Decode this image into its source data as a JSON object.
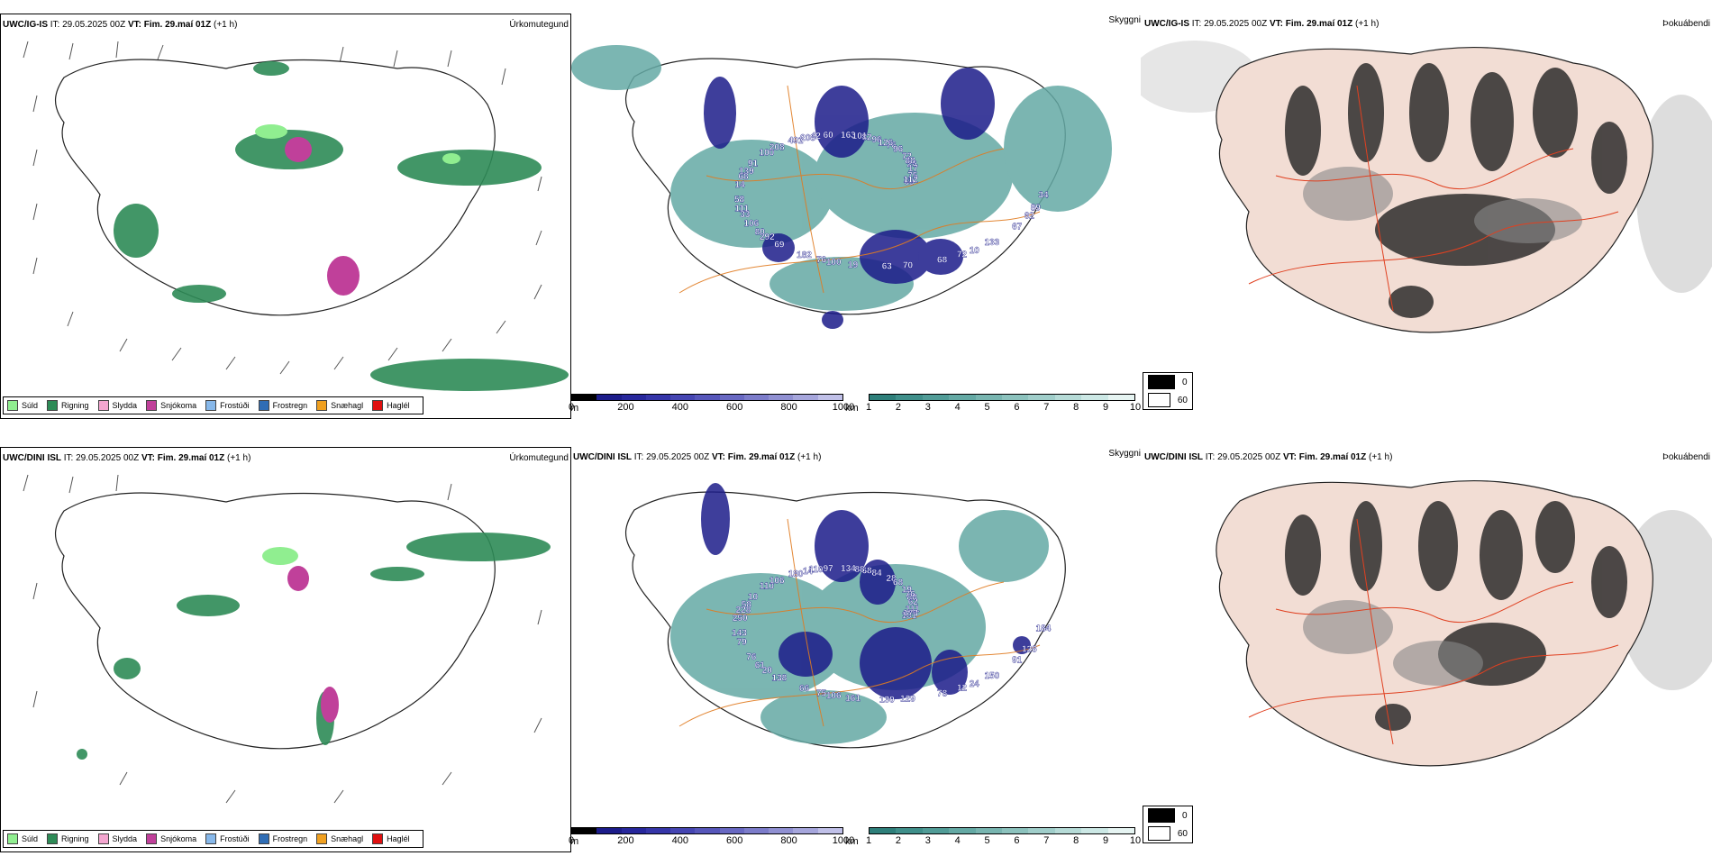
{
  "rows": [
    {
      "model": "UWC/IG-IS",
      "it_label": "IT:",
      "it_value": "29.05.2025 00Z",
      "vt_label": "VT:",
      "vt_value": "Fim. 29.maí 01Z",
      "lead": "(+1 h)"
    },
    {
      "model": "UWC/DINI ISL",
      "it_label": "IT:",
      "it_value": "29.05.2025 00Z",
      "vt_label": "VT:",
      "vt_value": "Fim. 29.maí 01Z",
      "lead": "(+1 h)"
    }
  ],
  "panel_titles": {
    "precip_type": "Úrkomutegund",
    "cloud_base": "Skyggni",
    "fog": "Þokuábendi"
  },
  "precip_legend": [
    {
      "label": "Súld",
      "color": "#90ee90"
    },
    {
      "label": "Rigning",
      "color": "#2e8b57"
    },
    {
      "label": "Slydda",
      "color": "#f4a6d0"
    },
    {
      "label": "Snjókoma",
      "color": "#c0409a"
    },
    {
      "label": "Frostúði",
      "color": "#87b8ea"
    },
    {
      "label": "Frostregn",
      "color": "#2f6db5"
    },
    {
      "label": "Snæhagl",
      "color": "#f0a020"
    },
    {
      "label": "Haglél",
      "color": "#e01010"
    }
  ],
  "cloud_colorbar": {
    "unit": "m",
    "ticks": [
      "0",
      "200",
      "400",
      "600",
      "800",
      "1000"
    ],
    "colors": [
      "#000000",
      "#1c1c8a",
      "#27279c",
      "#3535a8",
      "#4545b2",
      "#5656ba",
      "#6868c2",
      "#7c7cca",
      "#9090d2",
      "#a6a6dc",
      "#c0c0e8"
    ]
  },
  "vis_colorbar": {
    "unit": "km",
    "ticks": [
      "1",
      "2",
      "3",
      "4",
      "5",
      "6",
      "7",
      "8",
      "9",
      "10"
    ],
    "colors": [
      "#2e7f7a",
      "#3f8f8a",
      "#519c97",
      "#64a9a4",
      "#78b5b0",
      "#8cc2bd",
      "#a0ceca",
      "#b6dbd7",
      "#cce8e5",
      "#e6f4f2"
    ]
  },
  "fog_legend": [
    {
      "label": "0",
      "color": "#000000"
    },
    {
      "label": "60",
      "color": "#ffffff"
    }
  ],
  "cloud_labels_top": [
    "69",
    "80",
    "82",
    "72",
    "139",
    "26",
    "76",
    "42",
    "62",
    "111",
    "76",
    "70",
    "100",
    "75",
    "69",
    "163",
    "133",
    "14",
    "72",
    "19",
    "491",
    "34",
    "106",
    "96",
    "68",
    "91",
    "17",
    "182",
    "60",
    "67",
    "58",
    "96",
    "63",
    "208",
    "112",
    "292",
    "101",
    "10",
    "68",
    "88",
    "100",
    "208",
    "89",
    "33",
    "126"
  ],
  "cloud_labels_bottom": [
    "101",
    "61",
    "68",
    "12",
    "58",
    "88",
    "75",
    "110",
    "126",
    "79",
    "28",
    "129",
    "110",
    "111",
    "138",
    "134",
    "150",
    "250",
    "19",
    "161",
    "180",
    "184",
    "76",
    "84",
    "78",
    "10",
    "62",
    "66",
    "97",
    "91",
    "143",
    "68",
    "130",
    "106",
    "173",
    "20",
    "88",
    "24",
    "228",
    "76",
    "106",
    "14"
  ]
}
